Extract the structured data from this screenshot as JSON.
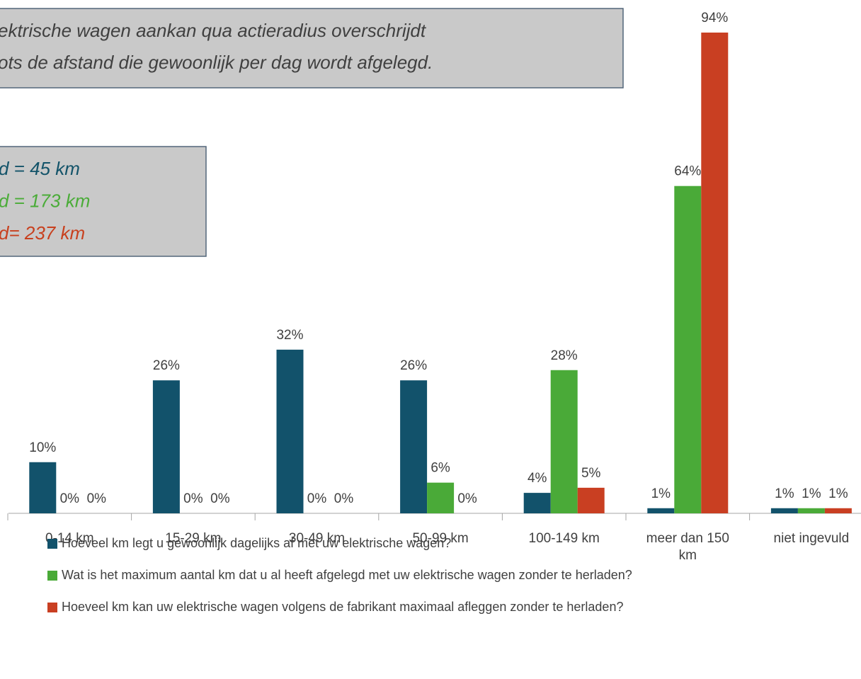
{
  "chart_data": {
    "type": "bar",
    "annotations": [
      "ektrische wagen aankan qua actieradius overschrijdt",
      "ots de afstand die gewoonlijk per dag wordt afgelegd."
    ],
    "notes": [
      {
        "text": "d = 45 km",
        "color": "#135369"
      },
      {
        "text": "d = 173 km",
        "color": "#4aac38"
      },
      {
        "text": "d= 237 km",
        "color": "#c8401e"
      }
    ],
    "categories": [
      "0-14 km",
      "15-29 km",
      "30-49 km",
      "50-99 km",
      "100-149 km",
      "meer dan 150 km",
      "niet ingevuld"
    ],
    "series": [
      {
        "name": "Hoeveel km legt u gewoonlijk dagelijks af met uw elektrische wagen?",
        "color": "#12526b",
        "values": [
          10,
          26,
          32,
          26,
          4,
          1,
          1
        ],
        "value_labels": [
          "10%",
          "26%",
          "32%",
          "26%",
          "4%",
          "1%",
          "1%"
        ]
      },
      {
        "name": "Wat is het maximum aantal km dat u al heeft afgelegd met uw elektrische wagen zonder te herladen?",
        "color": "#4aaa38",
        "values": [
          0,
          0,
          0,
          6,
          28,
          64,
          1
        ],
        "value_labels": [
          "0%",
          "0%",
          "0%",
          "6%",
          "28%",
          "64%",
          "1%"
        ]
      },
      {
        "name": "Hoeveel km kan uw elektrische wagen volgens de fabrikant maximaal afleggen zonder te herladen?",
        "color": "#c93f22",
        "values": [
          0,
          0,
          0,
          0,
          5,
          94,
          1
        ],
        "value_labels": [
          "0%",
          "0%",
          "0%",
          "0%",
          "5%",
          "94%",
          "1%"
        ]
      }
    ]
  }
}
